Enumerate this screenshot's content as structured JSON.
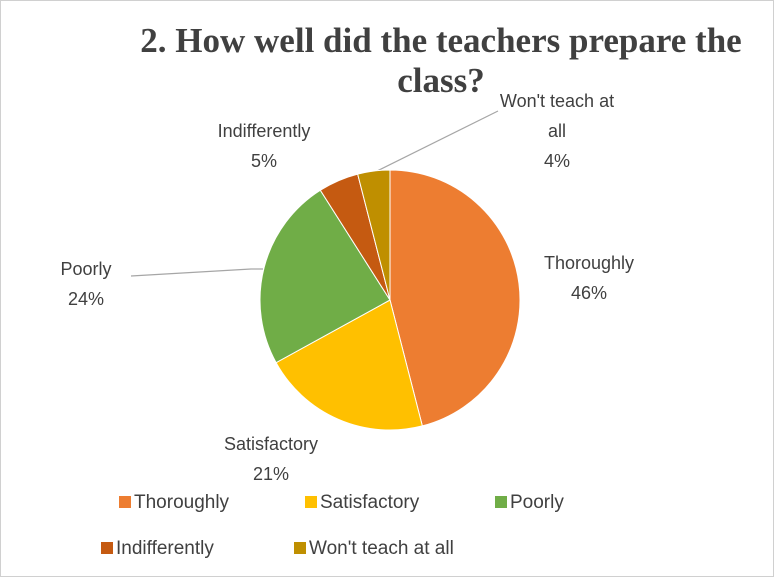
{
  "chart_data": {
    "type": "pie",
    "title": "2. How well did the teachers prepare the class?",
    "categories": [
      "Thoroughly",
      "Satisfactory",
      "Poorly",
      "Indifferently",
      "Won't teach at all"
    ],
    "values": [
      46,
      21,
      24,
      5,
      4
    ],
    "value_labels": [
      "46%",
      "21%",
      "24%",
      "5%",
      "4%"
    ],
    "colors": [
      "#ED7D31",
      "#FFC000",
      "#70AD47",
      "#C55A11",
      "#BF8F00"
    ],
    "legend": "bottom"
  }
}
